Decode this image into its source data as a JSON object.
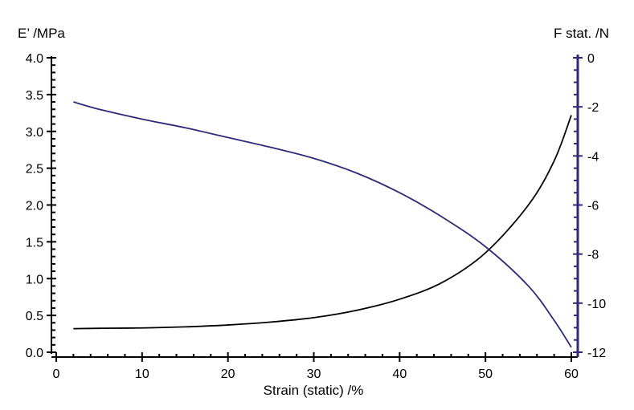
{
  "chart_data": {
    "type": "line",
    "xlabel": "Strain (static) /%",
    "xlim": [
      0,
      60
    ],
    "x_ticks": [
      0,
      10,
      20,
      30,
      40,
      50,
      60
    ],
    "left_axis": {
      "label": "E’ /MPa",
      "lim": [
        0,
        4
      ],
      "ticks": [
        0.0,
        0.5,
        1.0,
        1.5,
        2.0,
        2.5,
        3.0,
        3.5,
        4.0
      ],
      "tick_labels": [
        "0.0",
        "0.5",
        "1.0",
        "1.5",
        "2.0",
        "2.5",
        "3.0",
        "3.5",
        "4.0"
      ],
      "color": "#000000"
    },
    "right_axis": {
      "label": "F stat. /N",
      "lim": [
        -12,
        0
      ],
      "ticks": [
        0,
        -2,
        -4,
        -6,
        -8,
        -10,
        -12
      ],
      "tick_labels": [
        "0",
        "-2",
        "-4",
        "-6",
        "-8",
        "-10",
        "-12"
      ],
      "color": "#2e2a7a"
    },
    "grid": false,
    "series": [
      {
        "axis": "left",
        "color": "#000000",
        "x": [
          2,
          5,
          10,
          15,
          20,
          25,
          30,
          35,
          40,
          45,
          50,
          55,
          58,
          60
        ],
        "y": [
          0.32,
          0.325,
          0.33,
          0.345,
          0.37,
          0.41,
          0.47,
          0.57,
          0.72,
          0.95,
          1.35,
          2.0,
          2.6,
          3.22
        ]
      },
      {
        "axis": "right",
        "color": "#2e2a7a",
        "x": [
          2,
          5,
          10,
          15,
          20,
          25,
          30,
          35,
          40,
          45,
          50,
          55,
          58,
          60
        ],
        "y": [
          -1.8,
          -2.1,
          -2.5,
          -2.85,
          -3.25,
          -3.65,
          -4.1,
          -4.7,
          -5.5,
          -6.5,
          -7.7,
          -9.3,
          -10.7,
          -11.8
        ]
      }
    ]
  }
}
